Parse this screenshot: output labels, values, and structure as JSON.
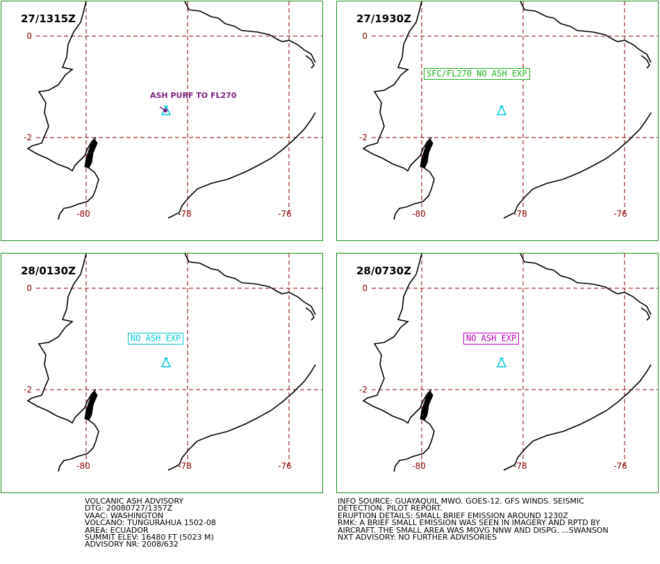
{
  "panels": [
    {
      "time": "27/1315Z",
      "annotation": "ASH PURF TO FL270",
      "annotation_style": "plain-purple",
      "volcano_marker": "volcano-icon"
    },
    {
      "time": "27/1930Z",
      "annotation": "SFC/FL270 NO ASH EXP",
      "annotation_style": "boxed-green",
      "volcano_marker": "volcano-icon"
    },
    {
      "time": "28/0130Z",
      "annotation": "NO ASH EXP",
      "annotation_style": "boxed-cyan",
      "volcano_marker": "volcano-icon"
    },
    {
      "time": "28/0730Z",
      "annotation": "NO ASH EXP",
      "annotation_style": "boxed-magenta",
      "volcano_marker": "volcano-icon"
    }
  ],
  "grid": {
    "lat_labels": [
      "0",
      "-2"
    ],
    "lon_labels": [
      "-80",
      "-78",
      "-76"
    ]
  },
  "colors": {
    "panel_border": "#1a8a1a",
    "grid": "#8b0000",
    "coast": "#000000",
    "volcano": "#00c8d8",
    "purple": "#7a1f7a",
    "green": "#19b019",
    "cyan": "#00c8d8",
    "magenta": "#c000c0"
  },
  "advisory_left": [
    "VOLCANIC ASH ADVISORY",
    "DTG: 20080727/1357Z",
    "VAAC: WASHINGTON",
    "VOLCANO: TUNGURAHUA 1502-08",
    "AREA: ECUADOR",
    "SUMMIT ELEV: 16480 FT (5023 M)",
    "ADVISORY NR: 2008/632"
  ],
  "advisory_right": [
    "INFO SOURCE: GUAYAQUIL MWO. GOES-12. GFS WINDS. SEISMIC",
    "DETECTION. PILOT REPORT.",
    "ERUPTION DETAILS: SMALL BRIEF EMISSION AROUND 1230Z",
    "RMK: A BRIEF SMALL EMISSION WAS SEEN IN IMAGERY AND RPTD BY",
    "AIRCRAFT. THE SMALL AREA WAS MOVG NNW AND DISPG. ...SWANSON",
    "NXT ADVISORY: NO FURTHER ADVISORIES"
  ]
}
